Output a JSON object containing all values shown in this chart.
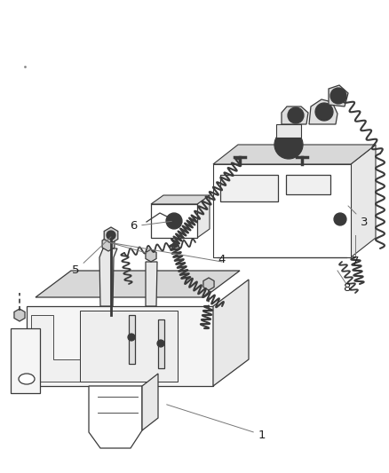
{
  "background_color": "#ffffff",
  "line_color": "#3a3a3a",
  "light_line": "#666666",
  "label_color": "#222222",
  "leader_color": "#777777",
  "fig_width": 4.38,
  "fig_height": 5.33,
  "dpi": 100,
  "coil_color": "#444444",
  "shade_color": "#e8e8e8",
  "shade2_color": "#d8d8d8"
}
